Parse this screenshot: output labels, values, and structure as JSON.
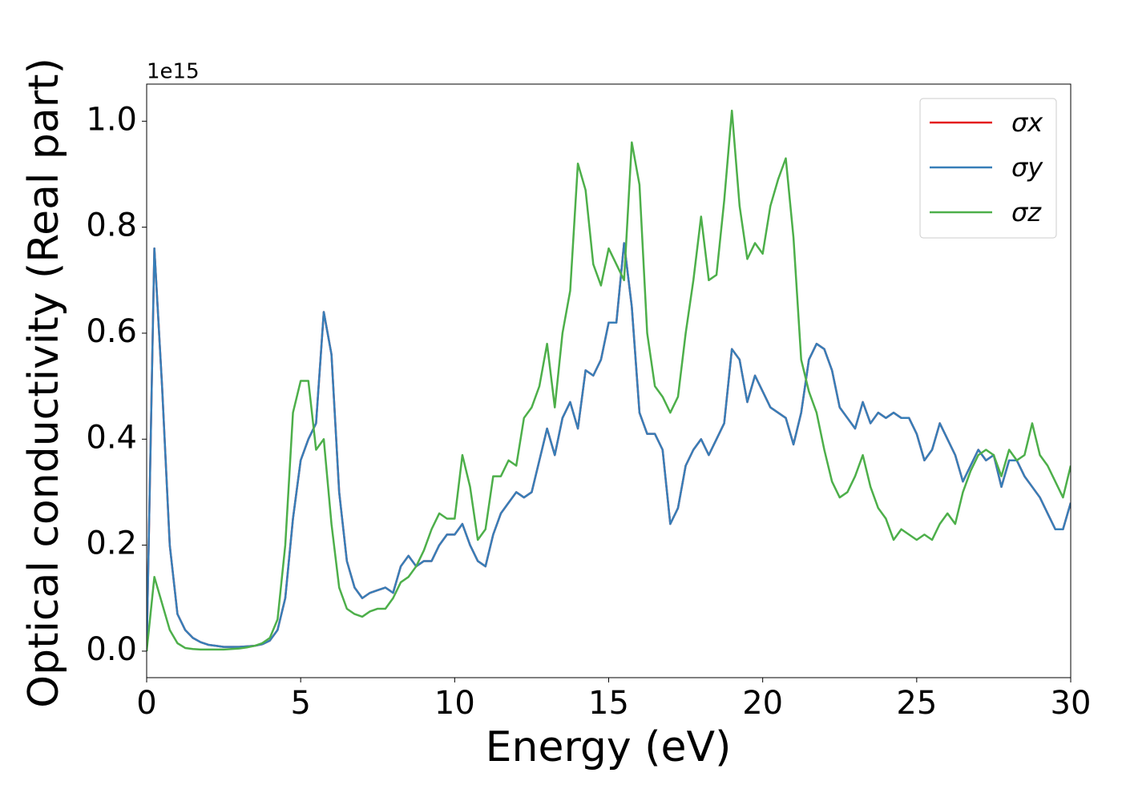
{
  "chart_data": {
    "type": "line",
    "x_label": "Energy (eV)",
    "y_label": "Optical conductivity (Real part)",
    "y_offset_label": "1e15",
    "x": [
      0,
      0.25,
      0.5,
      0.75,
      1,
      1.25,
      1.5,
      1.75,
      2,
      2.25,
      2.5,
      2.75,
      3,
      3.25,
      3.5,
      3.75,
      4,
      4.25,
      4.5,
      4.75,
      5,
      5.25,
      5.5,
      5.75,
      6,
      6.25,
      6.5,
      6.75,
      7,
      7.25,
      7.5,
      7.75,
      8,
      8.25,
      8.5,
      8.75,
      9,
      9.25,
      9.5,
      9.75,
      10,
      10.25,
      10.5,
      10.75,
      11,
      11.25,
      11.5,
      11.75,
      12,
      12.25,
      12.5,
      12.75,
      13,
      13.25,
      13.5,
      13.75,
      14,
      14.25,
      14.5,
      14.75,
      15,
      15.25,
      15.5,
      15.75,
      16,
      16.25,
      16.5,
      16.75,
      17,
      17.25,
      17.5,
      17.75,
      18,
      18.25,
      18.5,
      18.75,
      19,
      19.25,
      19.5,
      19.75,
      20,
      20.25,
      20.5,
      20.75,
      21,
      21.25,
      21.5,
      21.75,
      22,
      22.25,
      22.5,
      22.75,
      23,
      23.25,
      23.5,
      23.75,
      24,
      24.25,
      24.5,
      24.75,
      25,
      25.25,
      25.5,
      25.75,
      26,
      26.25,
      26.5,
      26.75,
      27,
      27.25,
      27.5,
      27.75,
      28,
      28.25,
      28.5,
      28.75,
      29,
      29.25,
      29.5,
      29.75,
      30
    ],
    "series": [
      {
        "name": "σx",
        "color": "#e41a1c",
        "values": [
          0,
          0.76,
          0.5,
          0.2,
          0.07,
          0.04,
          0.025,
          0.017,
          0.012,
          0.01,
          0.008,
          0.008,
          0.008,
          0.009,
          0.01,
          0.013,
          0.02,
          0.04,
          0.1,
          0.25,
          0.36,
          0.4,
          0.43,
          0.64,
          0.56,
          0.3,
          0.17,
          0.12,
          0.1,
          0.11,
          0.115,
          0.12,
          0.11,
          0.16,
          0.18,
          0.16,
          0.17,
          0.17,
          0.2,
          0.22,
          0.22,
          0.24,
          0.2,
          0.17,
          0.16,
          0.22,
          0.26,
          0.28,
          0.3,
          0.29,
          0.3,
          0.36,
          0.42,
          0.37,
          0.44,
          0.47,
          0.42,
          0.53,
          0.52,
          0.55,
          0.62,
          0.62,
          0.77,
          0.65,
          0.45,
          0.41,
          0.41,
          0.38,
          0.24,
          0.27,
          0.35,
          0.38,
          0.4,
          0.37,
          0.4,
          0.43,
          0.57,
          0.55,
          0.47,
          0.52,
          0.49,
          0.46,
          0.45,
          0.44,
          0.39,
          0.45,
          0.55,
          0.58,
          0.57,
          0.53,
          0.46,
          0.44,
          0.42,
          0.47,
          0.43,
          0.45,
          0.44,
          0.45,
          0.44,
          0.44,
          0.41,
          0.36,
          0.38,
          0.43,
          0.4,
          0.37,
          0.32,
          0.35,
          0.38,
          0.36,
          0.37,
          0.31,
          0.36,
          0.36,
          0.33,
          0.31,
          0.29,
          0.26,
          0.23,
          0.23,
          0.28
        ]
      },
      {
        "name": "σy",
        "color": "#377eb8",
        "values": [
          0,
          0.76,
          0.5,
          0.2,
          0.07,
          0.04,
          0.025,
          0.017,
          0.012,
          0.01,
          0.008,
          0.008,
          0.008,
          0.009,
          0.01,
          0.013,
          0.02,
          0.04,
          0.1,
          0.25,
          0.36,
          0.4,
          0.43,
          0.64,
          0.56,
          0.3,
          0.17,
          0.12,
          0.1,
          0.11,
          0.115,
          0.12,
          0.11,
          0.16,
          0.18,
          0.16,
          0.17,
          0.17,
          0.2,
          0.22,
          0.22,
          0.24,
          0.2,
          0.17,
          0.16,
          0.22,
          0.26,
          0.28,
          0.3,
          0.29,
          0.3,
          0.36,
          0.42,
          0.37,
          0.44,
          0.47,
          0.42,
          0.53,
          0.52,
          0.55,
          0.62,
          0.62,
          0.77,
          0.65,
          0.45,
          0.41,
          0.41,
          0.38,
          0.24,
          0.27,
          0.35,
          0.38,
          0.4,
          0.37,
          0.4,
          0.43,
          0.57,
          0.55,
          0.47,
          0.52,
          0.49,
          0.46,
          0.45,
          0.44,
          0.39,
          0.45,
          0.55,
          0.58,
          0.57,
          0.53,
          0.46,
          0.44,
          0.42,
          0.47,
          0.43,
          0.45,
          0.44,
          0.45,
          0.44,
          0.44,
          0.41,
          0.36,
          0.38,
          0.43,
          0.4,
          0.37,
          0.32,
          0.35,
          0.38,
          0.36,
          0.37,
          0.31,
          0.36,
          0.36,
          0.33,
          0.31,
          0.29,
          0.26,
          0.23,
          0.23,
          0.28
        ]
      },
      {
        "name": "σz",
        "color": "#4daf4a",
        "values": [
          0,
          0.14,
          0.09,
          0.04,
          0.015,
          0.006,
          0.004,
          0.003,
          0.003,
          0.003,
          0.003,
          0.004,
          0.005,
          0.007,
          0.01,
          0.015,
          0.025,
          0.06,
          0.2,
          0.45,
          0.51,
          0.51,
          0.38,
          0.4,
          0.24,
          0.12,
          0.08,
          0.07,
          0.065,
          0.075,
          0.08,
          0.08,
          0.1,
          0.13,
          0.14,
          0.16,
          0.19,
          0.23,
          0.26,
          0.25,
          0.25,
          0.37,
          0.31,
          0.21,
          0.23,
          0.33,
          0.33,
          0.36,
          0.35,
          0.44,
          0.46,
          0.5,
          0.58,
          0.46,
          0.6,
          0.68,
          0.92,
          0.87,
          0.73,
          0.69,
          0.76,
          0.73,
          0.7,
          0.96,
          0.88,
          0.6,
          0.5,
          0.48,
          0.45,
          0.48,
          0.6,
          0.7,
          0.82,
          0.7,
          0.71,
          0.85,
          1.02,
          0.84,
          0.74,
          0.77,
          0.75,
          0.84,
          0.89,
          0.93,
          0.78,
          0.55,
          0.49,
          0.45,
          0.38,
          0.32,
          0.29,
          0.3,
          0.33,
          0.37,
          0.31,
          0.27,
          0.25,
          0.21,
          0.23,
          0.22,
          0.21,
          0.22,
          0.21,
          0.24,
          0.26,
          0.24,
          0.3,
          0.34,
          0.37,
          0.38,
          0.37,
          0.33,
          0.38,
          0.36,
          0.37,
          0.43,
          0.37,
          0.35,
          0.32,
          0.29,
          0.35
        ]
      }
    ],
    "xlim": [
      0,
      30
    ],
    "xticks": [
      0,
      5,
      10,
      15,
      20,
      25,
      30
    ],
    "ylim": [
      -0.05,
      1.07
    ],
    "yticks": [
      {
        "value": 0,
        "label": "0.0"
      },
      0.2,
      0.4,
      0.6,
      0.8,
      {
        "value": 1,
        "label": "1.0"
      }
    ],
    "grid": false,
    "legend": "upper right"
  }
}
